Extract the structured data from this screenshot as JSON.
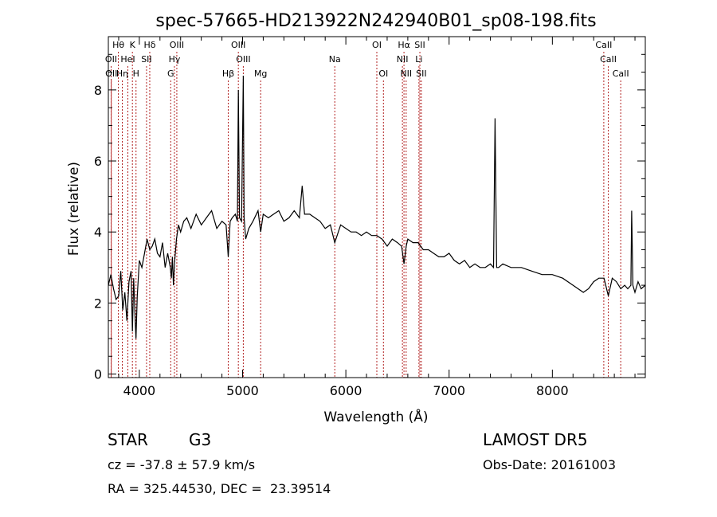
{
  "chart_data": {
    "type": "line",
    "title": "spec-57665-HD213922N242940B01_sp08-198.fits",
    "xlabel": "Wavelength (Å)",
    "ylabel": "Flux (relative)",
    "xlim": [
      3700,
      8900
    ],
    "ylim": [
      -0.1,
      9.5
    ],
    "xticks": [
      4000,
      5000,
      6000,
      7000,
      8000
    ],
    "yticks": [
      0,
      2,
      4,
      6,
      8
    ],
    "grid": false,
    "line_color": "#000000",
    "marker_color": "#b22222",
    "series": [
      {
        "x": [
          3700,
          3725,
          3750,
          3775,
          3800,
          3820,
          3840,
          3860,
          3880,
          3900,
          3920,
          3933,
          3945,
          3960,
          3968,
          3980,
          4000,
          4025,
          4050,
          4075,
          4101,
          4125,
          4150,
          4175,
          4200,
          4225,
          4250,
          4275,
          4300,
          4310,
          4320,
          4330,
          4340,
          4360,
          4380,
          4400,
          4430,
          4460,
          4500,
          4550,
          4600,
          4650,
          4700,
          4750,
          4800,
          4840,
          4861,
          4880,
          4900,
          4930,
          4950,
          4959,
          4970,
          4990,
          5007,
          5015,
          5030,
          5060,
          5100,
          5150,
          5175,
          5200,
          5250,
          5300,
          5350,
          5400,
          5450,
          5500,
          5550,
          5577,
          5600,
          5650,
          5700,
          5750,
          5800,
          5850,
          5893,
          5950,
          6000,
          6050,
          6100,
          6150,
          6200,
          6250,
          6300,
          6350,
          6400,
          6450,
          6500,
          6540,
          6563,
          6585,
          6600,
          6650,
          6700,
          6750,
          6800,
          6850,
          6900,
          6950,
          7000,
          7050,
          7100,
          7150,
          7200,
          7250,
          7300,
          7350,
          7400,
          7430,
          7445,
          7460,
          7480,
          7520,
          7600,
          7700,
          7800,
          7900,
          8000,
          8100,
          8200,
          8300,
          8350,
          8400,
          8450,
          8500,
          8542,
          8580,
          8620,
          8662,
          8700,
          8730,
          8760,
          8768,
          8780,
          8800,
          8830,
          8860,
          8900
        ],
        "y": [
          2.5,
          2.8,
          2.4,
          2.1,
          2.2,
          2.9,
          1.8,
          2.3,
          1.5,
          2.6,
          2.9,
          1.2,
          2.7,
          1.5,
          1.0,
          2.2,
          3.2,
          3.0,
          3.4,
          3.8,
          3.5,
          3.6,
          3.8,
          3.4,
          3.3,
          3.7,
          3.0,
          3.4,
          3.0,
          2.7,
          3.3,
          2.5,
          3.1,
          3.8,
          4.2,
          4.0,
          4.3,
          4.4,
          4.1,
          4.5,
          4.2,
          4.4,
          4.6,
          4.1,
          4.3,
          4.2,
          3.3,
          4.3,
          4.4,
          4.5,
          4.3,
          8.0,
          4.4,
          4.3,
          8.4,
          4.4,
          3.8,
          4.1,
          4.3,
          4.6,
          4.0,
          4.5,
          4.4,
          4.5,
          4.6,
          4.3,
          4.4,
          4.6,
          4.4,
          5.3,
          4.5,
          4.5,
          4.4,
          4.3,
          4.1,
          4.2,
          3.7,
          4.2,
          4.1,
          4.0,
          4.0,
          3.9,
          4.0,
          3.9,
          3.9,
          3.8,
          3.6,
          3.8,
          3.7,
          3.6,
          3.1,
          3.6,
          3.8,
          3.7,
          3.7,
          3.5,
          3.5,
          3.4,
          3.3,
          3.3,
          3.4,
          3.2,
          3.1,
          3.2,
          3.0,
          3.1,
          3.0,
          3.0,
          3.1,
          3.0,
          7.2,
          3.0,
          3.0,
          3.1,
          3.0,
          3.0,
          2.9,
          2.8,
          2.8,
          2.7,
          2.5,
          2.3,
          2.4,
          2.6,
          2.7,
          2.7,
          2.2,
          2.7,
          2.6,
          2.4,
          2.5,
          2.4,
          2.5,
          4.6,
          2.5,
          2.3,
          2.6,
          2.4,
          2.5
        ]
      }
    ],
    "annotations": [
      {
        "label": "Hθ",
        "wavelength": 3797,
        "row": 0
      },
      {
        "label": "K",
        "wavelength": 3933,
        "row": 0
      },
      {
        "label": "Hδ",
        "wavelength": 4101,
        "row": 0
      },
      {
        "label": "OIII",
        "wavelength": 4363,
        "row": 0
      },
      {
        "label": "OIII",
        "wavelength": 4959,
        "row": 0
      },
      {
        "label": "OI",
        "wavelength": 6300,
        "row": 0
      },
      {
        "label": "Hα",
        "wavelength": 6563,
        "row": 0
      },
      {
        "label": "SII",
        "wavelength": 6717,
        "row": 0
      },
      {
        "label": "CaII",
        "wavelength": 8498,
        "row": 0
      },
      {
        "label": "OII",
        "wavelength": 3727,
        "row": 1
      },
      {
        "label": "HeI",
        "wavelength": 3889,
        "row": 1
      },
      {
        "label": "SII",
        "wavelength": 4070,
        "row": 1
      },
      {
        "label": "Hγ",
        "wavelength": 4340,
        "row": 1
      },
      {
        "label": "OIII",
        "wavelength": 5007,
        "row": 1
      },
      {
        "label": "NII",
        "wavelength": 6548,
        "row": 1
      },
      {
        "label": "Li",
        "wavelength": 6708,
        "row": 1
      },
      {
        "label": "CaII",
        "wavelength": 8542,
        "row": 1
      },
      {
        "label": "OII",
        "wavelength": 3729,
        "row": 2
      },
      {
        "label": "Hη",
        "wavelength": 3835,
        "row": 2
      },
      {
        "label": "H",
        "wavelength": 3968,
        "row": 2
      },
      {
        "label": "G",
        "wavelength": 4304,
        "row": 2
      },
      {
        "label": "Hβ",
        "wavelength": 4861,
        "row": 2
      },
      {
        "label": "Mg",
        "wavelength": 5175,
        "row": 2
      },
      {
        "label": "Na",
        "wavelength": 5893,
        "row": 1
      },
      {
        "label": "OI",
        "wavelength": 6364,
        "row": 2
      },
      {
        "label": "NII",
        "wavelength": 6584,
        "row": 2
      },
      {
        "label": "SII",
        "wavelength": 6731,
        "row": 2
      },
      {
        "label": "CaII",
        "wavelength": 8662,
        "row": 2
      }
    ]
  },
  "info": {
    "class": "STAR",
    "subclass": "G3",
    "survey": "LAMOST DR5",
    "redshift": "cz = -37.8 ± 57.9 km/s",
    "obs_date": "Obs-Date: 20161003",
    "coords": "RA = 325.44530, DEC =  23.39514"
  }
}
